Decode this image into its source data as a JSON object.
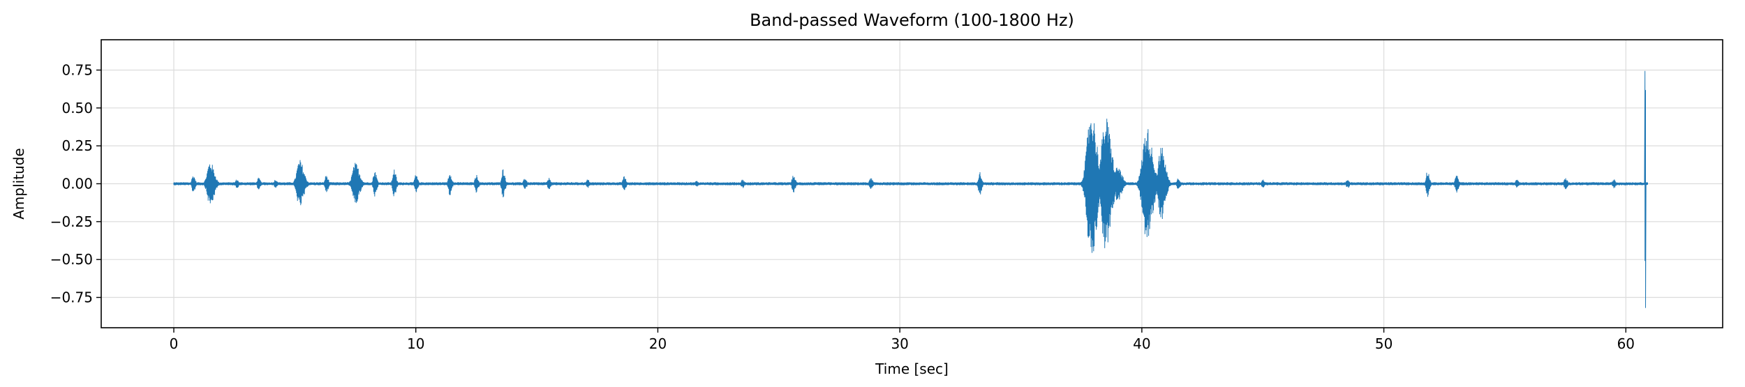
{
  "chart_data": {
    "type": "line",
    "title": "Band-passed Waveform (100-1800 Hz)",
    "xlabel": "Time [sec]",
    "ylabel": "Amplitude",
    "xlim": [
      -3,
      64
    ],
    "ylim": [
      -0.95,
      0.95
    ],
    "xticks": [
      0,
      10,
      20,
      30,
      40,
      50,
      60
    ],
    "yticks": [
      0.75,
      0.5,
      0.25,
      0.0,
      -0.25,
      -0.5,
      -0.75
    ],
    "xtick_labels": [
      "0",
      "10",
      "20",
      "30",
      "40",
      "50",
      "60"
    ],
    "ytick_labels": [
      "0.75",
      "0.50",
      "0.25",
      "0.00",
      "−0.25",
      "−0.50",
      "−0.75"
    ],
    "grid": true,
    "duration": 60.9,
    "series": [
      {
        "color": "#1f77b4",
        "baseline_noise": 0.01,
        "bursts": [
          {
            "t": 0.8,
            "amp": 0.06
          },
          {
            "t": 1.5,
            "amp": 0.15
          },
          {
            "t": 2.6,
            "amp": 0.03
          },
          {
            "t": 3.5,
            "amp": 0.04
          },
          {
            "t": 4.2,
            "amp": 0.03
          },
          {
            "t": 5.2,
            "amp": 0.16
          },
          {
            "t": 6.3,
            "amp": 0.06
          },
          {
            "t": 7.5,
            "amp": 0.14
          },
          {
            "t": 8.3,
            "amp": 0.09
          },
          {
            "t": 9.1,
            "amp": 0.1
          },
          {
            "t": 10.0,
            "amp": 0.06
          },
          {
            "t": 11.4,
            "amp": 0.08
          },
          {
            "t": 12.5,
            "amp": 0.06
          },
          {
            "t": 13.6,
            "amp": 0.1
          },
          {
            "t": 14.5,
            "amp": 0.04
          },
          {
            "t": 15.5,
            "amp": 0.04
          },
          {
            "t": 17.1,
            "amp": 0.03
          },
          {
            "t": 18.6,
            "amp": 0.05
          },
          {
            "t": 21.6,
            "amp": 0.02
          },
          {
            "t": 23.5,
            "amp": 0.03
          },
          {
            "t": 25.6,
            "amp": 0.06
          },
          {
            "t": 28.8,
            "amp": 0.04
          },
          {
            "t": 33.3,
            "amp": 0.08
          },
          {
            "t": 37.9,
            "amp": 0.5
          },
          {
            "t": 38.5,
            "amp": 0.45
          },
          {
            "t": 39.0,
            "amp": 0.12
          },
          {
            "t": 40.2,
            "amp": 0.38
          },
          {
            "t": 40.8,
            "amp": 0.25
          },
          {
            "t": 41.5,
            "amp": 0.04
          },
          {
            "t": 45.0,
            "amp": 0.03
          },
          {
            "t": 48.5,
            "amp": 0.03
          },
          {
            "t": 51.8,
            "amp": 0.09
          },
          {
            "t": 53.0,
            "amp": 0.06
          },
          {
            "t": 55.5,
            "amp": 0.03
          },
          {
            "t": 57.5,
            "amp": 0.04
          },
          {
            "t": 59.5,
            "amp": 0.03
          },
          {
            "t": 60.8,
            "amp": 0.88
          }
        ]
      }
    ]
  }
}
